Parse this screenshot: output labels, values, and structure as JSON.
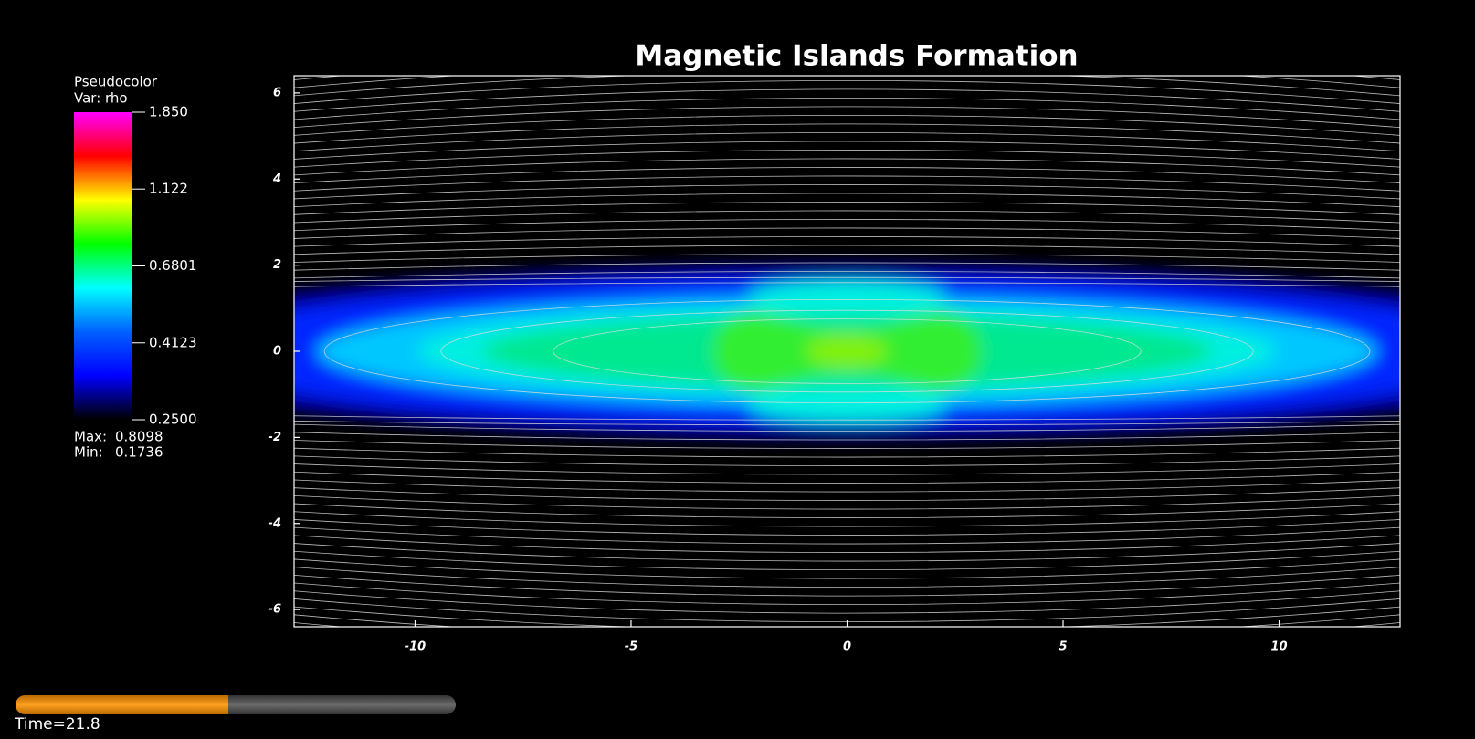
{
  "chart_data": {
    "type": "pseudocolor",
    "title": "Magnetic Islands Formation",
    "legend_title": "Pseudocolor",
    "variable_label": "Var: rho",
    "colorbar_lim": [
      0.25,
      1.85
    ],
    "colorbar_log": true,
    "colormap": [
      "#000000",
      "#0000ff",
      "#0060ff",
      "#00ffff",
      "#00ff00",
      "#ffff00",
      "#ff0000",
      "#ff00ff"
    ],
    "colorbar_ticks": [
      {
        "value": 1.85,
        "label": "1.850"
      },
      {
        "value": 1.122,
        "label": "1.122"
      },
      {
        "value": 0.6801,
        "label": "0.6801"
      },
      {
        "value": 0.4123,
        "label": "0.4123"
      },
      {
        "value": 0.25,
        "label": "0.2500"
      }
    ],
    "max_label": "Max:",
    "max": 0.8098,
    "min_label": "Min:",
    "min": 0.1736,
    "xlim": [
      -12.8,
      12.8
    ],
    "xticks": [
      -10,
      -5,
      0,
      5,
      10
    ],
    "ylim": [
      -6.4,
      6.4
    ],
    "yticks": [
      -6,
      -4,
      -2,
      0,
      2,
      4,
      6
    ],
    "time_label": "Time=21.8"
  }
}
